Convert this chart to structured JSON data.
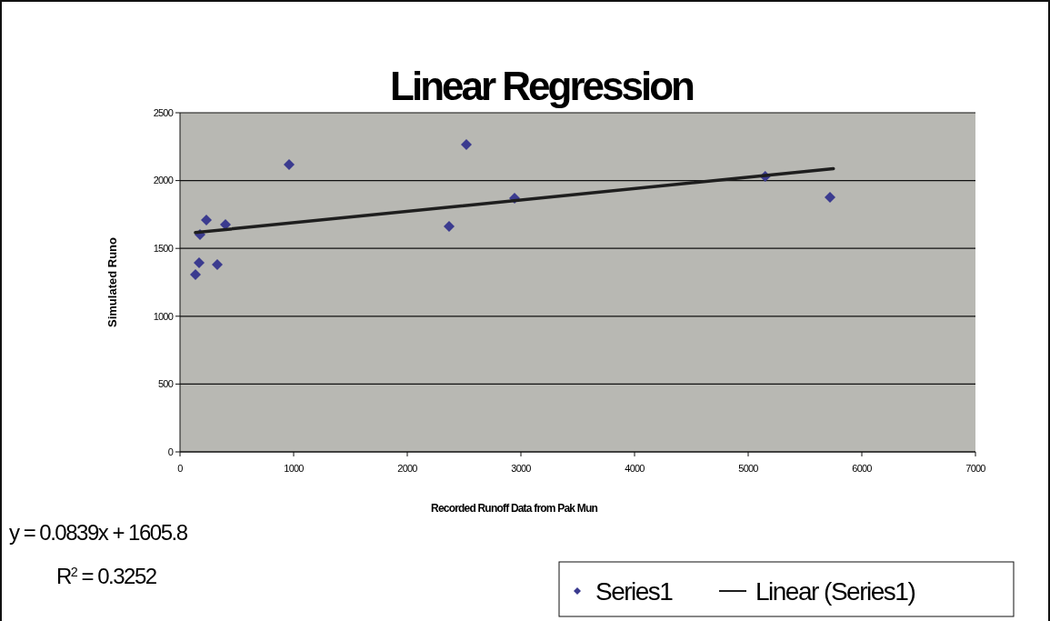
{
  "chart_data": {
    "type": "scatter",
    "title": "Linear Regression",
    "xlabel": "Recorded Runoff Data from Pak Mun",
    "ylabel": "Simulated Runo",
    "series": [
      {
        "name": "Series1",
        "color": "#3b3b8f",
        "marker": "diamond",
        "x": [
          136,
          168,
          328,
          176,
          232,
          400,
          960,
          2368,
          2520,
          2944,
          5150,
          5720
        ],
        "values": [
          1307,
          1394,
          1381,
          1602,
          1709,
          1676,
          2118,
          1662,
          2265,
          1870,
          2031,
          1877
        ]
      },
      {
        "name": "Linear (Series1)",
        "type": "line",
        "color": "#1e1e1e",
        "marker": "none",
        "line_style": "solid",
        "x": [
          136,
          5750
        ],
        "values": [
          1617,
          2088
        ]
      }
    ],
    "xlim": [
      0,
      7000
    ],
    "xticks": [
      0,
      1000,
      2000,
      3000,
      4000,
      5000,
      6000,
      7000
    ],
    "ylim": [
      0,
      2500
    ],
    "yticks": [
      0,
      500,
      1000,
      1500,
      2000,
      2500
    ],
    "grid": "y",
    "legend": "bottom right",
    "annotations": [
      "y = 0.0839x + 1605.8",
      "R$^{2}$ = 0.3252"
    ]
  }
}
